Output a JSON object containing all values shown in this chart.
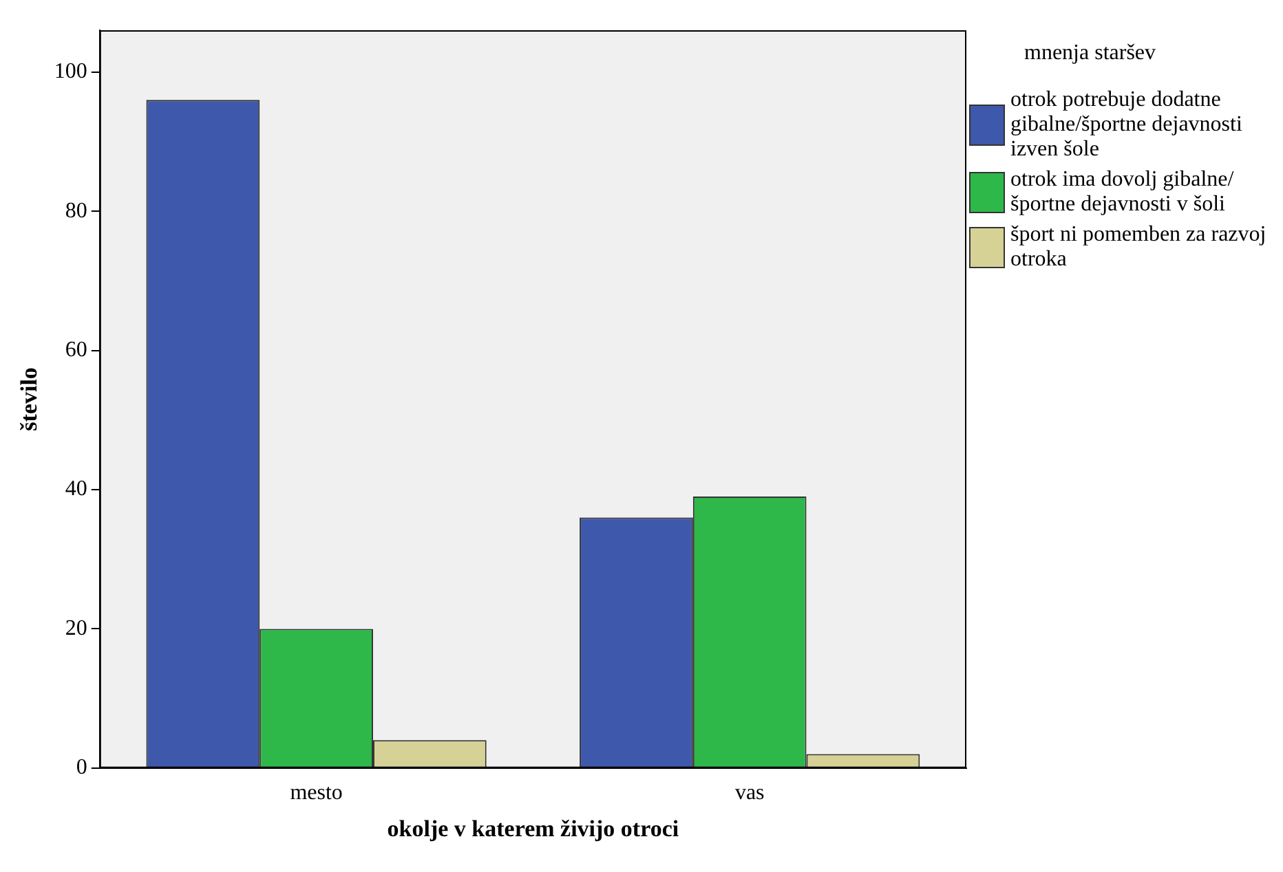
{
  "chart_data": {
    "type": "bar",
    "xlabel": "okolje v katerem živijo otroci",
    "ylabel": "število",
    "legend_title": "mnenja staršev",
    "categories": [
      "mesto",
      "vas"
    ],
    "series": [
      {
        "name": "otrok potrebuje dodatne gibalne/športne dejavnosti izven šole",
        "color": "#3e58ac",
        "values": [
          96,
          36
        ]
      },
      {
        "name": "otrok ima dovolj gibalne/športne dejavnosti v šoli",
        "color": "#2eb84a",
        "values": [
          20,
          39
        ]
      },
      {
        "name": "šport ni pomemben za razvoj otroka",
        "color": "#d6d296",
        "values": [
          4,
          2
        ]
      }
    ],
    "ylim": [
      0,
      106
    ],
    "yticks": [
      0,
      20,
      40,
      60,
      80,
      100
    ],
    "grid": false,
    "legend": "right"
  }
}
